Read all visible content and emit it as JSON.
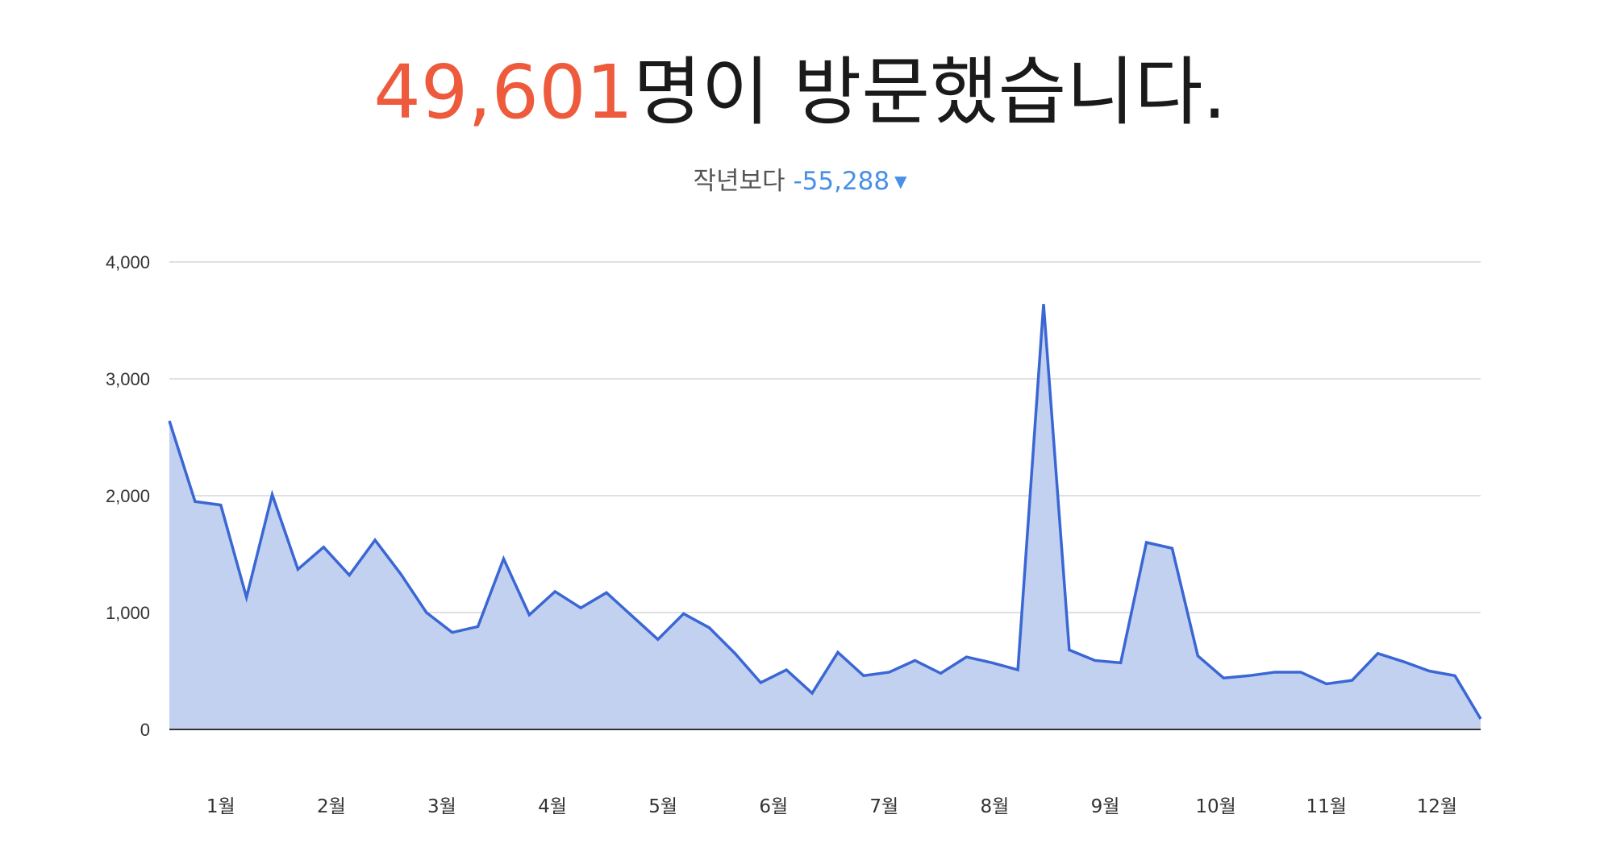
{
  "header": {
    "visitor_count": "49,601",
    "visitor_suffix": "명이 방문했습니다.",
    "compare_label": "작년보다",
    "compare_value": "-55,288",
    "compare_arrow": "▼"
  },
  "colors": {
    "accent": "#ee5a3c",
    "decrease": "#4a8fe7",
    "line": "#3a67d4",
    "area": "#c3d1f0",
    "grid": "#d6d6d6",
    "baseline": "#333333"
  },
  "chart_data": {
    "type": "area",
    "title": "",
    "xlabel": "",
    "ylabel": "",
    "ylim": [
      0,
      4000
    ],
    "y_ticks": [
      0,
      1000,
      2000,
      3000,
      4000
    ],
    "y_tick_labels": [
      "0",
      "1,000",
      "2,000",
      "3,000",
      "4,000"
    ],
    "grid": true,
    "x_tick_labels": [
      "1월",
      "2월",
      "3월",
      "4월",
      "5월",
      "6월",
      "7월",
      "8월",
      "9월",
      "10월",
      "11월",
      "12월"
    ],
    "x_tick_indices": [
      2,
      6.3,
      10.6,
      14.9,
      19.2,
      23.5,
      27.8,
      32.1,
      36.4,
      40.7,
      45,
      49.3
    ],
    "series": [
      {
        "values": [
          2640,
          1950,
          1920,
          1130,
          2010,
          1370,
          1560,
          1320,
          1620,
          1330,
          1000,
          830,
          880,
          1460,
          980,
          1180,
          1040,
          1170,
          970,
          770,
          990,
          870,
          650,
          400,
          510,
          310,
          660,
          460,
          490,
          590,
          480,
          620,
          570,
          510,
          3640,
          680,
          590,
          570,
          1600,
          1550,
          630,
          440,
          460,
          490,
          490,
          390,
          420,
          650,
          580,
          500,
          460,
          90
        ]
      }
    ]
  }
}
